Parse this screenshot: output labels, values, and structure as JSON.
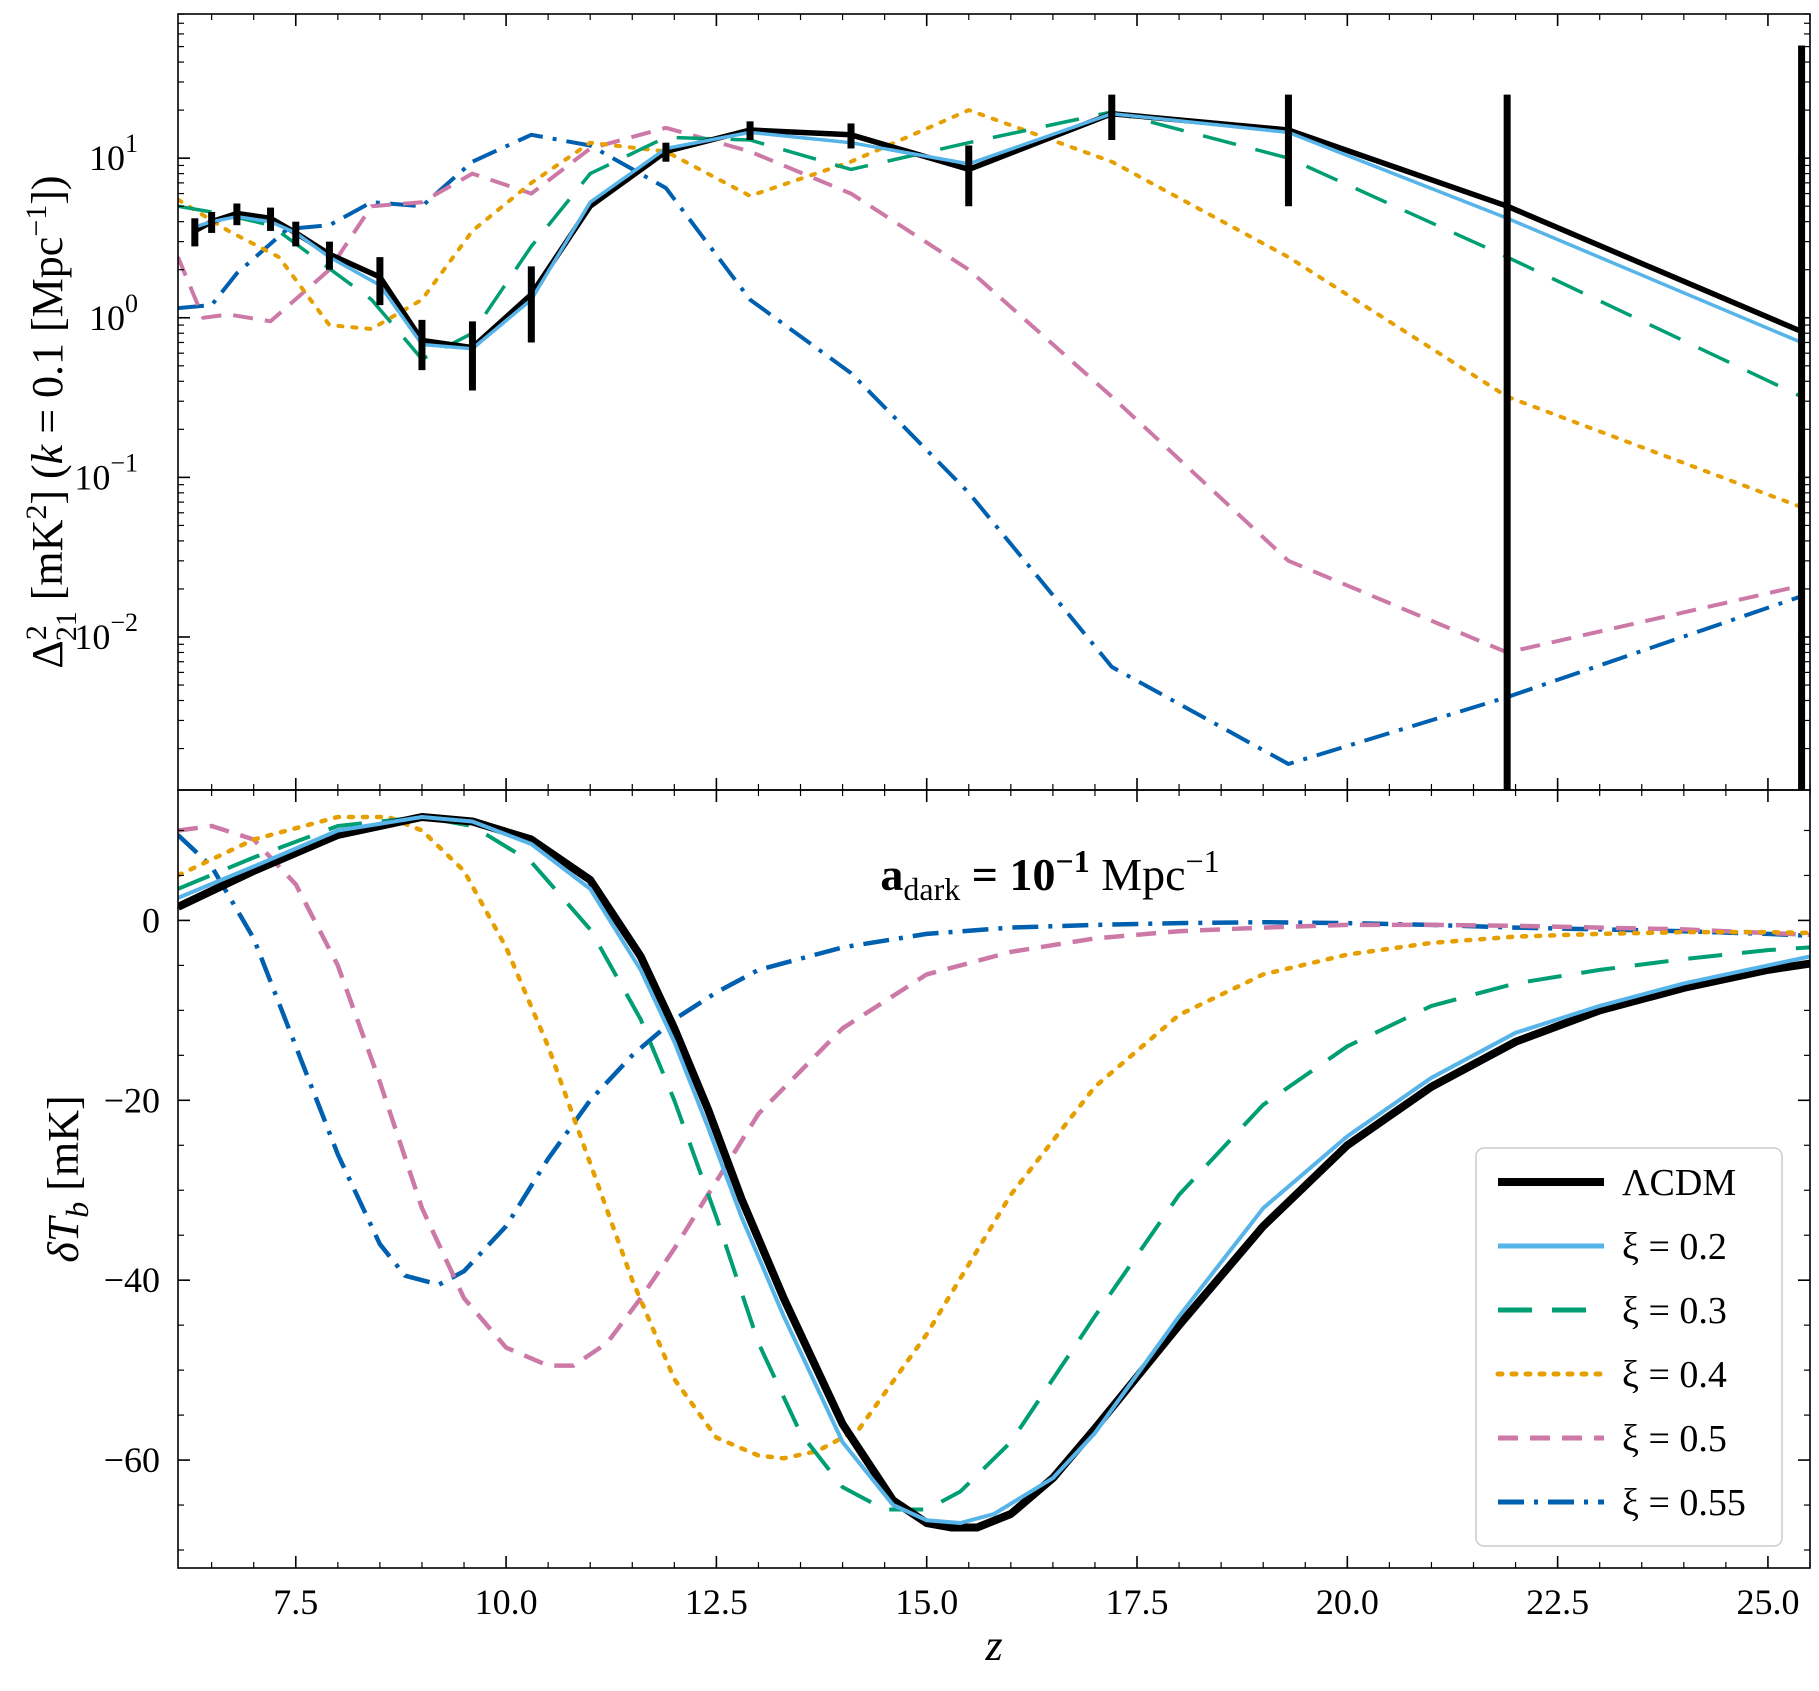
{
  "colors": {
    "lcdm": "#000000",
    "xi02": "#56b4e9",
    "xi03": "#009e73",
    "xi04": "#e69f00",
    "xi05": "#cc79a7",
    "xi055": "#0060b0"
  },
  "chart_data": [
    {
      "type": "line",
      "panel": "top",
      "title": "",
      "xlabel": "",
      "ylabel": "Δ²₂₁ [mK²] (k = 0.1 [Mpc⁻¹])",
      "xlim": [
        6.1,
        25.5
      ],
      "ylim": [
        0.0011,
        80
      ],
      "yscale": "log",
      "x_ticks": [
        7.5,
        10.0,
        12.5,
        15.0,
        17.5,
        20.0,
        22.5,
        25.0
      ],
      "y_ticks": [
        {
          "value": 10,
          "base": "10",
          "exp": "1"
        },
        {
          "value": 1,
          "base": "10",
          "exp": "0"
        },
        {
          "value": 0.1,
          "base": "10",
          "exp": "−1"
        },
        {
          "value": 0.01,
          "base": "10",
          "exp": "−2"
        }
      ],
      "series": [
        {
          "name": "ΛCDM",
          "key": "lcdm",
          "style": "solid",
          "width": 5.5,
          "x": [
            6.3,
            6.5,
            6.8,
            7.2,
            7.5,
            7.9,
            8.5,
            9.0,
            9.6,
            10.3,
            11.0,
            11.9,
            12.9,
            14.1,
            15.5,
            17.2,
            19.3,
            21.9,
            25.4
          ],
          "y": [
            3.5,
            4.0,
            4.5,
            4.2,
            3.4,
            2.5,
            1.8,
            0.72,
            0.65,
            1.4,
            5.0,
            11.0,
            15.0,
            14.0,
            8.5,
            19.0,
            15.0,
            5.0,
            0.82
          ],
          "errors": [
            0.7,
            0.6,
            0.7,
            0.7,
            0.6,
            0.5,
            0.6,
            0.25,
            0.3,
            0.7,
            0,
            1.5,
            2.0,
            2.5,
            3.5,
            6.0,
            10.0,
            20.0,
            50.0
          ]
        },
        {
          "name": "ξ = 0.2",
          "key": "xi02",
          "style": "solid",
          "width": 3.5,
          "x": [
            6.3,
            6.5,
            6.8,
            7.2,
            7.5,
            7.9,
            8.5,
            9.0,
            9.6,
            10.3,
            11.0,
            11.9,
            12.9,
            14.1,
            15.5,
            17.2,
            19.3,
            21.9,
            25.4
          ],
          "y": [
            3.7,
            4.0,
            4.3,
            4.0,
            3.4,
            2.4,
            1.6,
            0.68,
            0.64,
            1.3,
            5.3,
            11.5,
            14.5,
            12.5,
            9.2,
            19.0,
            14.5,
            4.2,
            0.7
          ]
        },
        {
          "name": "ξ = 0.3",
          "key": "xi03",
          "style": "longdash",
          "width": 3.5,
          "x": [
            6.1,
            6.6,
            7.2,
            8.4,
            9.0,
            9.6,
            10.3,
            11.0,
            11.9,
            12.9,
            14.1,
            15.5,
            17.2,
            19.3,
            21.9,
            25.4
          ],
          "y": [
            5.0,
            4.5,
            3.8,
            1.3,
            0.55,
            0.8,
            2.8,
            8.0,
            13.5,
            13.0,
            8.5,
            12.5,
            19.5,
            10.0,
            2.4,
            0.32
          ]
        },
        {
          "name": "ξ = 0.4",
          "key": "xi04",
          "style": "dotted",
          "width": 4,
          "x": [
            6.1,
            6.7,
            7.3,
            7.9,
            8.4,
            9.0,
            9.6,
            10.3,
            11.0,
            11.9,
            12.9,
            14.1,
            15.5,
            17.2,
            19.3,
            21.9,
            25.4
          ],
          "y": [
            5.5,
            3.5,
            2.4,
            0.9,
            0.85,
            1.3,
            3.5,
            7.0,
            12.5,
            11.0,
            5.8,
            9.5,
            20.0,
            9.5,
            2.4,
            0.32,
            0.065
          ]
        },
        {
          "name": "ξ = 0.5",
          "key": "xi05",
          "style": "dashed",
          "width": 4,
          "x": [
            6.1,
            6.4,
            6.7,
            7.2,
            7.9,
            8.4,
            9.0,
            9.6,
            10.3,
            11.0,
            11.9,
            12.9,
            14.1,
            15.5,
            17.2,
            19.3,
            21.9,
            25.4
          ],
          "y": [
            2.4,
            1.0,
            1.05,
            0.95,
            2.0,
            5.0,
            5.3,
            8.0,
            6.0,
            11.5,
            15.5,
            11.0,
            6.0,
            2.0,
            0.32,
            0.03,
            0.008,
            0.021
          ]
        },
        {
          "name": "ξ = 0.55",
          "key": "xi055",
          "style": "dashdot",
          "width": 4,
          "x": [
            6.1,
            6.5,
            6.8,
            7.4,
            7.9,
            8.4,
            9.0,
            9.6,
            10.3,
            11.0,
            11.9,
            12.9,
            14.1,
            15.5,
            17.2,
            19.3,
            21.9,
            25.4
          ],
          "y": [
            1.15,
            1.2,
            1.9,
            3.6,
            3.8,
            5.3,
            5.0,
            9.5,
            14.0,
            12.0,
            6.5,
            1.3,
            0.45,
            0.08,
            0.0065,
            0.0016,
            0.0042,
            0.018
          ]
        }
      ]
    },
    {
      "type": "line",
      "panel": "bottom",
      "title": "",
      "annotation": {
        "bold": "a",
        "sub": "dark",
        "eq": " = ",
        "exp_base": "10",
        "exp": "−1",
        "unit": " Mpc",
        "unit_exp": "−1"
      },
      "xlabel": "z",
      "ylabel": "δTb [mK]",
      "xlim": [
        6.1,
        25.5
      ],
      "ylim": [
        -72,
        14.5
      ],
      "x_ticks": [
        7.5,
        10.0,
        12.5,
        15.0,
        17.5,
        20.0,
        22.5,
        25.0
      ],
      "y_ticks": [
        0,
        -20,
        -40,
        -60
      ],
      "legend_position": "bottom-right",
      "series": [
        {
          "name": "ΛCDM",
          "key": "lcdm",
          "style": "solid",
          "width": 8,
          "x": [
            6.1,
            7.0,
            8.0,
            9.0,
            9.6,
            10.3,
            11.0,
            11.6,
            12.0,
            12.4,
            12.8,
            13.3,
            14.0,
            14.6,
            15.0,
            15.3,
            15.6,
            16.0,
            16.5,
            17.0,
            18.0,
            19.0,
            20.0,
            21.0,
            22.0,
            23.0,
            24.0,
            25.0,
            25.5
          ],
          "y": [
            1.5,
            5.5,
            9.5,
            11.5,
            11.0,
            9.0,
            4.5,
            -4.0,
            -12.0,
            -21.0,
            -31.0,
            -42.0,
            -56.0,
            -64.5,
            -67.0,
            -67.5,
            -67.5,
            -66.0,
            -62.0,
            -56.5,
            -45.0,
            -34.0,
            -25.0,
            -18.5,
            -13.5,
            -10.0,
            -7.5,
            -5.5,
            -4.8
          ]
        },
        {
          "name": "ξ = 0.2",
          "key": "xi02",
          "style": "solid",
          "width": 4,
          "x": [
            6.1,
            7.0,
            8.0,
            9.0,
            9.6,
            10.3,
            11.0,
            11.6,
            12.0,
            12.4,
            12.8,
            13.3,
            14.0,
            14.6,
            15.0,
            15.4,
            15.8,
            16.5,
            17.0,
            18.0,
            19.0,
            20.0,
            21.0,
            22.0,
            23.0,
            24.0,
            25.0,
            25.5
          ],
          "y": [
            2.5,
            6.0,
            10.0,
            11.5,
            11.0,
            8.5,
            3.5,
            -5.5,
            -13.5,
            -23.0,
            -33.0,
            -44.0,
            -58.0,
            -65.0,
            -66.7,
            -67.0,
            -66.0,
            -62.0,
            -57.0,
            -44.0,
            -32.0,
            -24.0,
            -17.5,
            -12.5,
            -9.5,
            -7.0,
            -5.0,
            -4.0
          ]
        },
        {
          "name": "ξ = 0.3",
          "key": "xi03",
          "style": "longdash",
          "width": 4,
          "x": [
            6.1,
            7.0,
            8.0,
            9.0,
            9.6,
            10.3,
            11.0,
            11.6,
            12.0,
            12.5,
            13.0,
            13.5,
            14.0,
            14.5,
            15.0,
            15.4,
            16.0,
            17.0,
            18.0,
            19.0,
            20.0,
            21.0,
            22.0,
            23.0,
            24.0,
            25.0,
            25.5
          ],
          "y": [
            3.5,
            7.0,
            10.5,
            11.5,
            10.5,
            6.5,
            -1.0,
            -11.0,
            -20.0,
            -33.0,
            -47.0,
            -57.0,
            -63.0,
            -65.5,
            -65.5,
            -63.5,
            -58.0,
            -44.0,
            -30.5,
            -20.5,
            -14.0,
            -9.5,
            -7.0,
            -5.5,
            -4.3,
            -3.3,
            -3.0
          ]
        },
        {
          "name": "ξ = 0.4",
          "key": "xi04",
          "style": "dotted",
          "width": 4.5,
          "x": [
            6.1,
            7.0,
            8.0,
            8.6,
            9.0,
            9.5,
            10.0,
            10.5,
            11.0,
            11.5,
            12.0,
            12.5,
            13.0,
            13.3,
            13.7,
            14.2,
            15.0,
            16.0,
            17.0,
            18.0,
            19.0,
            20.0,
            21.0,
            22.0,
            23.0,
            24.0,
            25.0,
            25.5
          ],
          "y": [
            5.0,
            9.0,
            11.5,
            11.5,
            10.0,
            5.5,
            -3.0,
            -14.0,
            -27.0,
            -40.0,
            -51.0,
            -57.5,
            -59.5,
            -59.8,
            -59.0,
            -56.5,
            -46.0,
            -30.5,
            -18.5,
            -10.5,
            -6.0,
            -3.8,
            -2.5,
            -1.8,
            -1.5,
            -1.3,
            -1.3,
            -1.4
          ]
        },
        {
          "name": "ξ = 0.5",
          "key": "xi05",
          "style": "dashed",
          "width": 4.5,
          "x": [
            6.1,
            6.5,
            7.0,
            7.5,
            8.0,
            8.5,
            9.0,
            9.5,
            10.0,
            10.5,
            10.8,
            11.2,
            11.6,
            12.0,
            12.5,
            13.0,
            14.0,
            15.0,
            16.0,
            17.0,
            18.0,
            19.0,
            20.0,
            21.0,
            22.0,
            23.0,
            24.0,
            25.0,
            25.5
          ],
          "y": [
            10.0,
            10.5,
            9.0,
            4.0,
            -5.0,
            -18.0,
            -32.0,
            -42.0,
            -47.5,
            -49.5,
            -49.5,
            -47.0,
            -42.0,
            -36.5,
            -29.0,
            -21.5,
            -12.0,
            -6.0,
            -3.5,
            -2.0,
            -1.2,
            -0.8,
            -0.5,
            -0.5,
            -0.6,
            -0.8,
            -1.0,
            -1.4,
            -1.6
          ]
        },
        {
          "name": "ξ = 0.55",
          "key": "xi055",
          "style": "dashdot",
          "width": 4.5,
          "x": [
            6.1,
            6.5,
            7.0,
            7.5,
            8.0,
            8.5,
            8.8,
            9.2,
            9.5,
            10.0,
            10.5,
            11.0,
            11.5,
            12.0,
            12.5,
            13.0,
            14.0,
            15.0,
            16.0,
            17.0,
            18.0,
            19.0,
            20.0,
            21.0,
            22.0,
            23.0,
            24.0,
            25.0,
            25.5
          ],
          "y": [
            9.5,
            6.0,
            -2.0,
            -14.0,
            -26.0,
            -36.0,
            -39.5,
            -40.5,
            -39.0,
            -34.0,
            -26.5,
            -20.0,
            -15.0,
            -11.0,
            -8.0,
            -5.5,
            -3.0,
            -1.5,
            -0.8,
            -0.5,
            -0.3,
            -0.2,
            -0.3,
            -0.5,
            -0.8,
            -1.0,
            -1.2,
            -1.5,
            -1.7
          ]
        }
      ]
    }
  ]
}
